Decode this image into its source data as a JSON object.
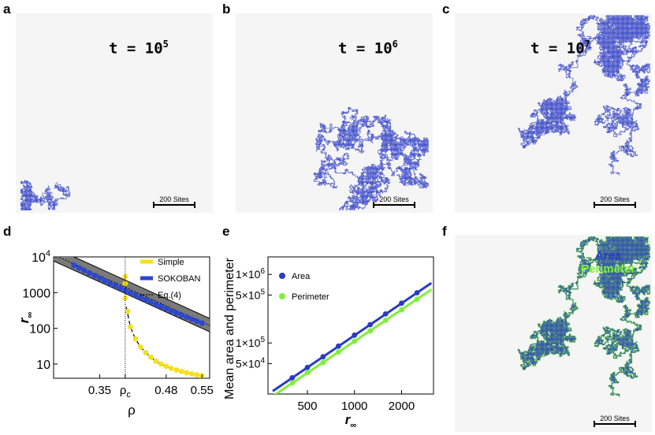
{
  "panels": {
    "a": {
      "letter": "a",
      "time_label": "t = 10",
      "time_exp": "5",
      "scale_label": "200 Sites"
    },
    "b": {
      "letter": "b",
      "time_label": "t = 10",
      "time_exp": "6",
      "scale_label": "200 Sites"
    },
    "c": {
      "letter": "c",
      "time_label": "t = 10",
      "time_exp": "7",
      "scale_label": "200 Sites"
    },
    "d": {
      "letter": "d"
    },
    "e": {
      "letter": "e"
    },
    "f": {
      "letter": "f",
      "legend_area": "Area",
      "legend_perimeter": "Perimeter",
      "scale_label": "200 Sites"
    }
  },
  "colors": {
    "walk": "#2b3bc4",
    "simple": "#f5e11a",
    "sokoban": "#2b46d0",
    "area": "#2b3bc4",
    "perimeter": "#7ff03a",
    "band": "#7a7a7a"
  },
  "chart_data": [
    {
      "id": "d",
      "type": "scatter",
      "xlabel": "ρ",
      "ylabel": "r∞",
      "yscale": "log",
      "xlim": [
        0.26,
        0.565
      ],
      "ylim": [
        4,
        10000
      ],
      "xticks": [
        {
          "value": 0.35,
          "label": "0.35"
        },
        {
          "value": 0.4,
          "label": "ρc"
        },
        {
          "value": 0.48,
          "label": "0.48"
        },
        {
          "value": 0.55,
          "label": "0.55"
        }
      ],
      "yticks": [
        {
          "value": 10,
          "label": "10"
        },
        {
          "value": 100,
          "label": "100"
        },
        {
          "value": 1000,
          "label": "1000"
        },
        {
          "value": 10000,
          "label": "10^4"
        }
      ],
      "critical_line": 0.4,
      "legend": [
        "Simple",
        "SOKOBAN",
        "Eq.(4)"
      ],
      "series": [
        {
          "name": "SOKOBAN",
          "x": [
            0.3,
            0.31,
            0.32,
            0.33,
            0.34,
            0.35,
            0.36,
            0.37,
            0.38,
            0.39,
            0.4,
            0.41,
            0.42,
            0.43,
            0.44,
            0.45,
            0.46,
            0.47,
            0.48,
            0.49,
            0.5,
            0.51,
            0.52,
            0.53,
            0.54,
            0.55
          ],
          "y": [
            5800,
            4900,
            4150,
            3520,
            2990,
            2540,
            2160,
            1840,
            1570,
            1340,
            1150,
            990,
            850,
            730,
            630,
            545,
            470,
            408,
            354,
            308,
            268,
            234,
            205,
            180,
            158,
            140
          ]
        },
        {
          "name": "Simple",
          "x": [
            0.4,
            0.4,
            0.4,
            0.405,
            0.41,
            0.42,
            0.43,
            0.44,
            0.45,
            0.46,
            0.47,
            0.48,
            0.49,
            0.5,
            0.51,
            0.52,
            0.53,
            0.54,
            0.55
          ],
          "y": [
            2800,
            1800,
            700,
            300,
            110,
            50,
            30,
            21,
            15.5,
            12,
            10,
            8.6,
            7.6,
            6.8,
            6.2,
            5.7,
            5.3,
            5.0,
            4.7
          ]
        },
        {
          "name": "Eq.(4)",
          "x": [
            0.26,
            0.565
          ],
          "y": [
            11500,
            120
          ]
        }
      ]
    },
    {
      "id": "e",
      "type": "scatter",
      "xlabel": "r∞",
      "ylabel": "Mean area and perimeter",
      "xscale": "log",
      "yscale": "log",
      "xlim": [
        280,
        3200
      ],
      "ylim": [
        18000,
        1800000
      ],
      "xticks": [
        {
          "value": 500,
          "label": "500"
        },
        {
          "value": 1000,
          "label": "1000"
        },
        {
          "value": 2000,
          "label": "2000"
        }
      ],
      "yticks": [
        {
          "value": 50000,
          "label": "5×10^4"
        },
        {
          "value": 100000,
          "label": "1×10^5"
        },
        {
          "value": 500000,
          "label": "5×10^5"
        },
        {
          "value": 1000000,
          "label": "1×10^6"
        }
      ],
      "legend": [
        "Area",
        "Perimeter"
      ],
      "series": [
        {
          "name": "Area",
          "x": [
            400,
            500,
            630,
            790,
            1000,
            1260,
            1580,
            2000,
            2510
          ],
          "y": [
            31000,
            44000,
            63000,
            90000,
            130000,
            185000,
            265000,
            380000,
            540000
          ]
        },
        {
          "name": "Perimeter",
          "x": [
            400,
            500,
            630,
            790,
            1000,
            1260,
            1580,
            2000,
            2510
          ],
          "y": [
            26000,
            37000,
            52000,
            74000,
            106000,
            150000,
            214000,
            305000,
            435000
          ]
        }
      ]
    }
  ]
}
